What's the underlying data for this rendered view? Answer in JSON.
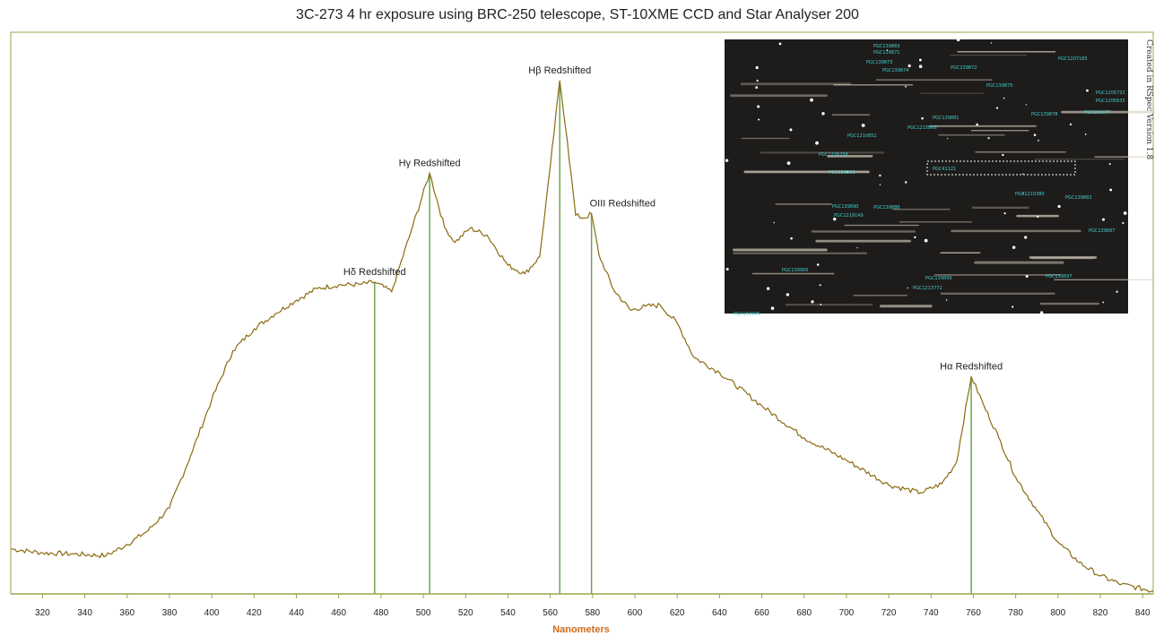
{
  "title": "3C-273 4 hr exposure using BRC-250 telescope, ST-10XME CCD and Star Analyser 200",
  "credit": "Created in RSpec Version 1.8",
  "colors": {
    "spectrum": "#8a6a10",
    "markers": "#6aa84f",
    "frame": "#9aa64a",
    "xlabel": "#d06a18",
    "background": "#ffffff"
  },
  "chart_data": {
    "type": "line",
    "title": "3C-273 4 hr exposure using BRC-250 telescope, ST-10XME CCD and Star Analyser 200",
    "xlabel": "Nanometers",
    "ylabel": "",
    "xlim": [
      305,
      845
    ],
    "ylim": [
      0,
      100
    ],
    "xticks": [
      320,
      340,
      360,
      380,
      400,
      420,
      440,
      460,
      480,
      500,
      520,
      540,
      560,
      580,
      600,
      620,
      640,
      660,
      680,
      700,
      720,
      740,
      760,
      780,
      800,
      820,
      840
    ],
    "grid": false,
    "series": [
      {
        "name": "",
        "x": [
          305,
          320,
          335,
          350,
          360,
          370,
          380,
          390,
          400,
          410,
          420,
          430,
          440,
          450,
          460,
          470,
          477,
          485,
          495,
          503,
          510,
          515,
          522,
          530,
          540,
          548,
          555,
          560,
          564.5,
          568,
          572,
          576,
          579.5,
          583,
          590,
          598,
          605,
          612,
          620,
          628,
          640,
          660,
          680,
          700,
          720,
          735,
          745,
          752,
          759,
          765,
          772,
          780,
          790,
          800,
          810,
          820,
          830,
          845
        ],
        "y": [
          8,
          7.3,
          7.1,
          6.8,
          8.8,
          11.3,
          15.3,
          24.6,
          34.6,
          43.3,
          47.2,
          49.9,
          52.3,
          54.4,
          55,
          55.1,
          55.5,
          53.8,
          65.5,
          74.9,
          65.3,
          62.6,
          65.1,
          63.9,
          58.5,
          57,
          60,
          76,
          91.4,
          80.9,
          67.4,
          66.9,
          67.7,
          60.4,
          54.1,
          50.5,
          51.2,
          51.4,
          48.2,
          42.1,
          39.4,
          33.5,
          27.8,
          23.8,
          19.4,
          18,
          19.6,
          23.4,
          38.7,
          33.5,
          27.8,
          20.8,
          14.9,
          9.2,
          5.6,
          3.2,
          1.7,
          0.5
        ]
      }
    ],
    "annotations": [
      {
        "label": "Hδ Redshifted",
        "x": 477
      },
      {
        "label": "Hγ Redshifted",
        "x": 503
      },
      {
        "label": "Hβ Redshifted",
        "x": 564.5
      },
      {
        "label": "OIII Redshifted",
        "x": 579.5
      },
      {
        "label": "Hα Redshifted",
        "x": 759
      }
    ]
  },
  "inset": {
    "labels": [
      "PGC139869",
      "PGC139871",
      "PGC139873",
      "PGC139874",
      "PGC139872",
      "PGC1207185",
      "PGC139875",
      "PGC1205732",
      "PGC1205635",
      "PGC139877",
      "PGC139881",
      "PGC139878",
      "PGC1215868",
      "PGC1210852",
      "PGC1226258",
      "PGC41121",
      "PGC139886",
      "PGC1210380",
      "PGC139883",
      "PGC139890",
      "PGC139888",
      "PGC1219149",
      "PGC139887",
      "PGC139900",
      "PGC139899",
      "PGC139897",
      "PGC1213772",
      "PGC139905"
    ]
  }
}
